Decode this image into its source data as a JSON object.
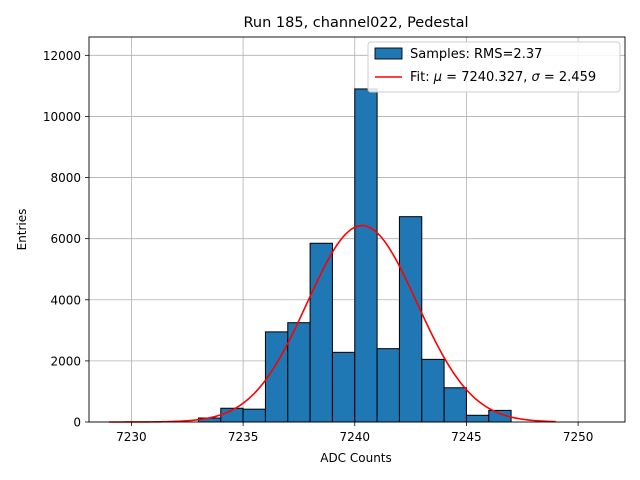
{
  "chart_data": {
    "type": "bar",
    "title": "Run 185, channel022, Pedestal",
    "xlabel": "ADC Counts",
    "ylabel": "Entries",
    "xlim": [
      7228.1,
      7252.1
    ],
    "ylim": [
      0,
      12600
    ],
    "xticks": [
      7230,
      7235,
      7240,
      7245,
      7250
    ],
    "yticks": [
      0,
      2000,
      4000,
      6000,
      8000,
      10000,
      12000
    ],
    "grid": true,
    "legend_position": "top-right",
    "histogram": {
      "name": "Samples: RMS=2.37",
      "bin_width": 1,
      "bin_edges_start": 7233,
      "values": [
        130,
        450,
        420,
        2950,
        3250,
        5850,
        2280,
        10900,
        2400,
        6720,
        2050,
        1120,
        220,
        380
      ],
      "color": "#1f77b4",
      "edgecolor": "#000000"
    },
    "fit": {
      "name_prefix": "Fit: ",
      "name_rest": " = 7240.327, ",
      "name_end": " = 2.459",
      "mu_symbol": "μ",
      "sigma_symbol": "σ",
      "mu": 7240.327,
      "sigma": 2.459,
      "amplitude": 6430,
      "x_range": [
        7229,
        7249
      ],
      "color": "#ff0000"
    }
  }
}
